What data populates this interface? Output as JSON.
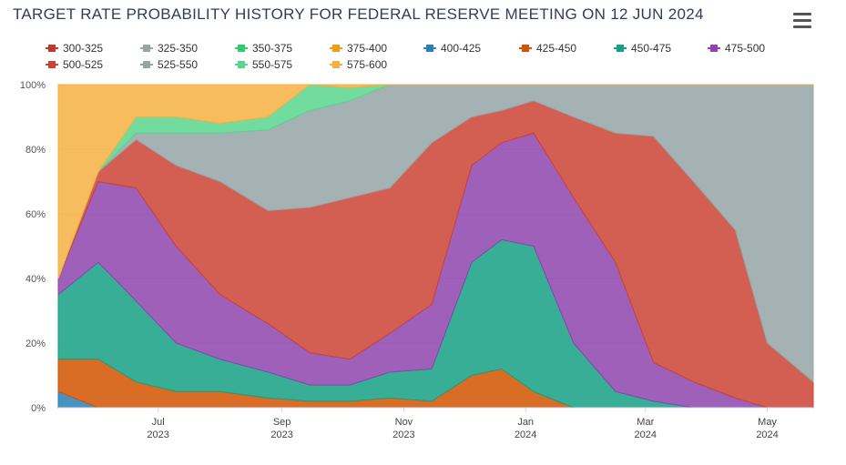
{
  "header": {
    "title": "TARGET RATE PROBABILITY HISTORY FOR FEDERAL RESERVE MEETING ON 12 JUN 2024",
    "menu_icon": "hamburger-menu-icon"
  },
  "chart_data": {
    "type": "area",
    "stacked": "percent",
    "title": "TARGET RATE PROBABILITY HISTORY FOR FEDERAL RESERVE MEETING ON 12 JUN 2024",
    "xlabel": "",
    "ylabel": "",
    "ylim": [
      0,
      100
    ],
    "y_ticks": [
      "0%",
      "20%",
      "40%",
      "60%",
      "80%",
      "100%"
    ],
    "x_ticks": [
      {
        "label": "Jul",
        "year": "2023"
      },
      {
        "label": "Sep",
        "year": "2023"
      },
      {
        "label": "Nov",
        "year": "2023"
      },
      {
        "label": "Jan",
        "year": "2024"
      },
      {
        "label": "Mar",
        "year": "2024"
      },
      {
        "label": "May",
        "year": "2024"
      }
    ],
    "x_range": [
      "2023-05-12",
      "2024-05-24"
    ],
    "grid": true,
    "legend_position": "top",
    "x": [
      "2023-05-12",
      "2023-06-01",
      "2023-06-20",
      "2023-07-10",
      "2023-08-01",
      "2023-08-25",
      "2023-09-15",
      "2023-10-05",
      "2023-10-25",
      "2023-11-15",
      "2023-12-05",
      "2023-12-20",
      "2024-01-05",
      "2024-01-25",
      "2024-02-15",
      "2024-03-05",
      "2024-03-25",
      "2024-04-15",
      "2024-05-01",
      "2024-05-24"
    ],
    "series": [
      {
        "name": "300-325",
        "color": "#c0392b",
        "values": [
          0,
          0,
          0,
          0,
          0,
          0,
          0,
          0,
          0,
          0,
          0,
          0,
          0,
          0,
          0,
          0,
          0,
          0,
          0,
          0
        ]
      },
      {
        "name": "325-350",
        "color": "#95a5a6",
        "values": [
          0,
          0,
          0,
          0,
          0,
          0,
          0,
          0,
          0,
          0,
          0,
          0,
          0,
          0,
          0,
          0,
          0,
          0,
          0,
          0
        ]
      },
      {
        "name": "350-375",
        "color": "#2ecc71",
        "values": [
          0,
          0,
          0,
          0,
          0,
          0,
          0,
          0,
          0,
          0,
          0,
          0,
          0,
          0,
          0,
          0,
          0,
          0,
          0,
          0
        ]
      },
      {
        "name": "375-400",
        "color": "#f39c12",
        "values": [
          0,
          0,
          0,
          0,
          0,
          0,
          0,
          0,
          0,
          0,
          0,
          0,
          0,
          0,
          0,
          0,
          0,
          0,
          0,
          0
        ]
      },
      {
        "name": "400-425",
        "color": "#2980b9",
        "values": [
          5,
          0,
          0,
          0,
          0,
          0,
          0,
          0,
          0,
          0,
          0,
          0,
          0,
          0,
          0,
          0,
          0,
          0,
          0,
          0
        ]
      },
      {
        "name": "425-450",
        "color": "#d35400",
        "values": [
          10,
          15,
          8,
          5,
          5,
          3,
          2,
          2,
          3,
          2,
          10,
          12,
          5,
          0,
          0,
          0,
          0,
          0,
          0,
          0
        ]
      },
      {
        "name": "450-475",
        "color": "#16a085",
        "values": [
          20,
          30,
          25,
          15,
          10,
          8,
          5,
          5,
          8,
          10,
          35,
          40,
          45,
          20,
          5,
          2,
          0,
          0,
          0,
          0
        ]
      },
      {
        "name": "475-500",
        "color": "#8e44ad",
        "values": [
          5,
          25,
          35,
          30,
          20,
          15,
          10,
          8,
          12,
          20,
          30,
          30,
          35,
          45,
          40,
          12,
          8,
          3,
          0,
          0
        ]
      },
      {
        "name": "500-525",
        "color": "#cb4335",
        "values": [
          0,
          3,
          15,
          25,
          35,
          35,
          45,
          50,
          45,
          50,
          15,
          10,
          10,
          25,
          40,
          70,
          62,
          52,
          20,
          8
        ]
      },
      {
        "name": "525-550",
        "color": "#95a5a6",
        "values": [
          0,
          0,
          2,
          10,
          15,
          25,
          30,
          30,
          32,
          18,
          10,
          8,
          5,
          10,
          15,
          16,
          30,
          45,
          80,
          92
        ]
      },
      {
        "name": "550-575",
        "color": "#58d68d",
        "values": [
          0,
          0,
          5,
          5,
          3,
          4,
          8,
          4,
          0,
          0,
          0,
          0,
          0,
          0,
          0,
          0,
          0,
          0,
          0,
          0
        ]
      },
      {
        "name": "575-600",
        "color": "#f5b041",
        "values": [
          60,
          27,
          10,
          10,
          12,
          10,
          0,
          1,
          0,
          0,
          0,
          0,
          0,
          0,
          0,
          0,
          0,
          0,
          0,
          0
        ]
      }
    ]
  }
}
